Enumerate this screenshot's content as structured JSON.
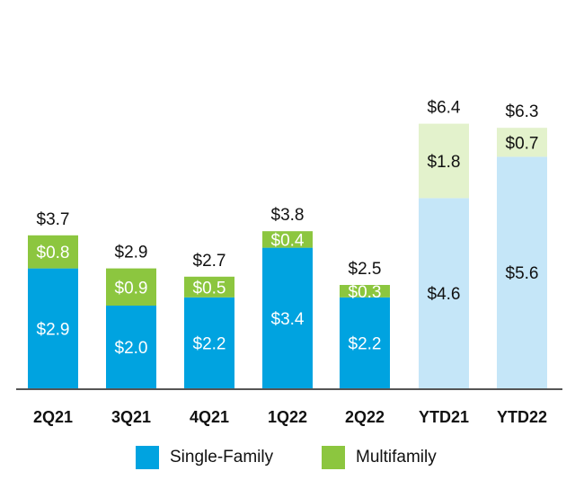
{
  "chart_data": {
    "type": "bar",
    "stacked": true,
    "categories": [
      "2Q21",
      "3Q21",
      "4Q21",
      "1Q22",
      "2Q22",
      "YTD21",
      "YTD22"
    ],
    "series": [
      {
        "name": "Single-Family",
        "values": [
          2.9,
          2.0,
          2.2,
          3.4,
          2.2,
          4.6,
          5.6
        ],
        "labels": [
          "$2.9",
          "$2.0",
          "$2.2",
          "$3.4",
          "$2.2",
          "$4.6",
          "$5.6"
        ]
      },
      {
        "name": "Multifamily",
        "values": [
          0.8,
          0.9,
          0.5,
          0.4,
          0.3,
          1.8,
          0.7
        ],
        "labels": [
          "$0.8",
          "$0.9",
          "$0.5",
          "$0.4",
          "$0.3",
          "$1.8",
          "$0.7"
        ]
      }
    ],
    "totals": [
      3.7,
      2.9,
      2.7,
      3.8,
      2.5,
      6.4,
      6.3
    ],
    "total_labels": [
      "$3.7",
      "$2.9",
      "$2.7",
      "$3.8",
      "$2.5",
      "$6.4",
      "$6.3"
    ],
    "colors": {
      "single_family": "#00a3e0",
      "multifamily": "#8cc63f",
      "single_family_ytd": "#c5e6f8",
      "multifamily_ytd": "#e3f2cc",
      "label_on_dark": "#ffffff",
      "label_on_light": "#111111",
      "axis": "#555555"
    },
    "ytd_categories": [
      "YTD21",
      "YTD22"
    ],
    "ylim": [
      0,
      7
    ],
    "grid": false,
    "legend_position": "bottom"
  },
  "legend": [
    {
      "label": "Single-Family",
      "color": "#00a3e0"
    },
    {
      "label": "Multifamily",
      "color": "#8cc63f"
    }
  ]
}
